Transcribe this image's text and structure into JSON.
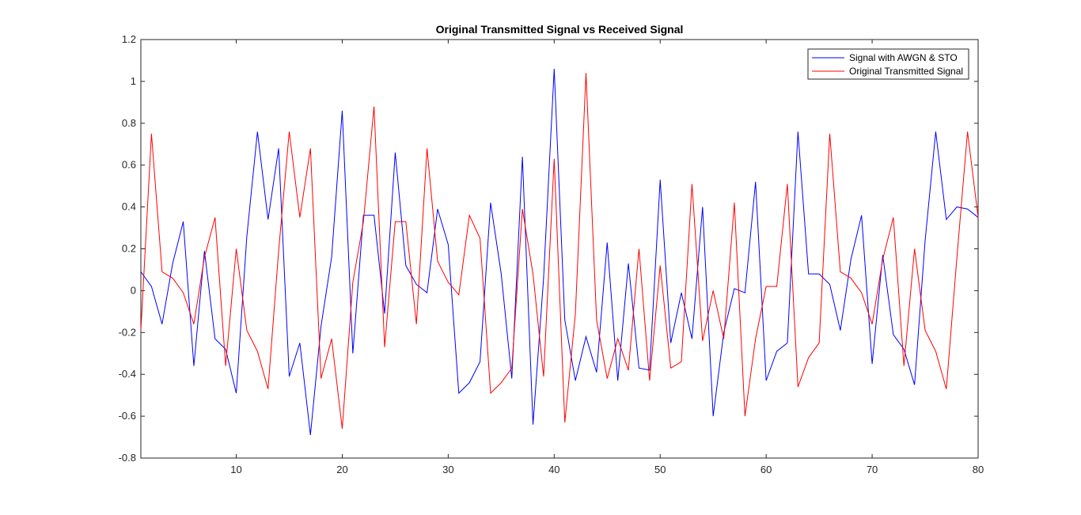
{
  "figure": {
    "background": "#ffffff",
    "axes_color": "#262626"
  },
  "chart_data": {
    "type": "line",
    "title": "Original Transmitted Signal vs Received Signal",
    "xlabel": "",
    "ylabel": "",
    "xlim": [
      1,
      80
    ],
    "ylim": [
      -0.8,
      1.2
    ],
    "xticks": [
      10,
      20,
      30,
      40,
      50,
      60,
      70,
      80
    ],
    "xtick_labels": [
      "10",
      "20",
      "30",
      "40",
      "50",
      "60",
      "70",
      "80"
    ],
    "yticks": [
      -0.8,
      -0.6,
      -0.4,
      -0.2,
      0,
      0.2,
      0.4,
      0.6,
      0.8,
      1,
      1.2
    ],
    "ytick_labels": [
      "-0.8",
      "-0.6",
      "-0.4",
      "-0.2",
      "0",
      "0.2",
      "0.4",
      "0.6",
      "0.8",
      "1",
      "1.2"
    ],
    "grid": false,
    "legend_position": "top-right",
    "x": [
      1,
      2,
      3,
      4,
      5,
      6,
      7,
      8,
      9,
      10,
      11,
      12,
      13,
      14,
      15,
      16,
      17,
      18,
      19,
      20,
      21,
      22,
      23,
      24,
      25,
      26,
      27,
      28,
      29,
      30,
      31,
      32,
      33,
      34,
      35,
      36,
      37,
      38,
      39,
      40,
      41,
      42,
      43,
      44,
      45,
      46,
      47,
      48,
      49,
      50,
      51,
      52,
      53,
      54,
      55,
      56,
      57,
      58,
      59,
      60,
      61,
      62,
      63,
      64,
      65,
      66,
      67,
      68,
      69,
      70,
      71,
      72,
      73,
      74,
      75,
      76,
      77,
      78,
      79,
      80
    ],
    "series": [
      {
        "name": "Signal with AWGN & STO",
        "color": "#0000ff",
        "values": [
          0.09,
          0.02,
          -0.16,
          0.13,
          0.33,
          -0.36,
          0.19,
          -0.23,
          -0.28,
          -0.49,
          0.26,
          0.76,
          0.34,
          0.68,
          -0.41,
          -0.25,
          -0.69,
          -0.17,
          0.16,
          0.86,
          -0.3,
          0.36,
          0.36,
          -0.11,
          0.66,
          0.12,
          0.03,
          -0.01,
          0.39,
          0.22,
          -0.49,
          -0.44,
          -0.34,
          0.42,
          0.08,
          -0.42,
          0.64,
          -0.64,
          0.06,
          1.06,
          -0.14,
          -0.43,
          -0.22,
          -0.39,
          0.23,
          -0.43,
          0.13,
          -0.37,
          -0.38,
          0.53,
          -0.25,
          -0.01,
          -0.23,
          0.4,
          -0.6,
          -0.2,
          0.01,
          -0.01,
          0.52,
          -0.43,
          -0.29,
          -0.25,
          0.76,
          0.08,
          0.08,
          0.03,
          -0.19,
          0.15,
          0.36,
          -0.35,
          0.17,
          -0.21,
          -0.28,
          -0.45,
          0.24,
          0.76,
          0.34,
          0.4,
          0.39,
          0.35
        ]
      },
      {
        "name": "Original Transmitted Signal",
        "color": "#ff0000",
        "values": [
          -0.19,
          0.75,
          0.09,
          0.06,
          -0.01,
          -0.16,
          0.16,
          0.35,
          -0.36,
          0.2,
          -0.19,
          -0.29,
          -0.47,
          0.19,
          0.76,
          0.35,
          0.68,
          -0.42,
          -0.23,
          -0.66,
          0.04,
          0.33,
          0.88,
          -0.27,
          0.33,
          0.33,
          -0.16,
          0.68,
          0.14,
          0.04,
          -0.02,
          0.36,
          0.25,
          -0.49,
          -0.44,
          -0.37,
          0.39,
          0.08,
          -0.41,
          0.63,
          -0.63,
          -0.11,
          1.04,
          -0.14,
          -0.42,
          -0.23,
          -0.38,
          0.2,
          -0.43,
          0.12,
          -0.37,
          -0.34,
          0.51,
          -0.24,
          0.0,
          -0.23,
          0.42,
          -0.6,
          -0.23,
          0.02,
          0.02,
          0.51,
          -0.46,
          -0.32,
          -0.25,
          0.75,
          0.09,
          0.06,
          -0.01,
          -0.16,
          0.15,
          0.35,
          -0.36,
          0.2,
          -0.19,
          -0.29,
          -0.47,
          0.16,
          0.76,
          0.35
        ]
      }
    ]
  }
}
